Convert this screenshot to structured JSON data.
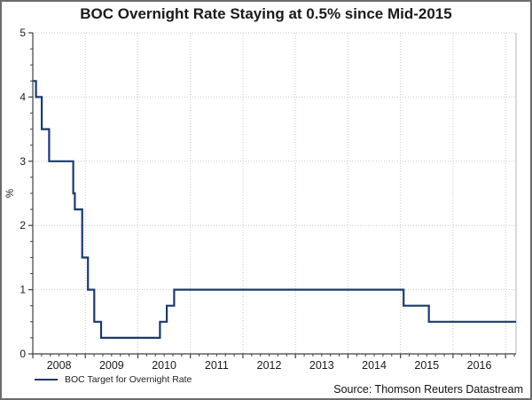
{
  "title": "BOC Overnight Rate Staying at 0.5% since Mid-2015",
  "source": "Source: Thomson Reuters Datastream",
  "colors": {
    "line": "#1b3a6b",
    "grid": "#c9c9c9",
    "axis": "#404040",
    "plot_border": "#b4b4b4",
    "text": "#1a1a1a",
    "outer_border": "#6b6b6b"
  },
  "chart_data": {
    "type": "line",
    "subtype": "step",
    "title": "BOC Overnight Rate Staying at 0.5% since Mid-2015",
    "xlabel": "",
    "ylabel": "%",
    "xlim": [
      2008,
      2017.2
    ],
    "ylim": [
      0,
      5
    ],
    "grid": "dotted",
    "legend_position": "bottom-left",
    "y_major_ticks": [
      0,
      1,
      2,
      3,
      4,
      5
    ],
    "y_tick_labels": [
      "0",
      "1",
      "2",
      "3",
      "4",
      "5"
    ],
    "y_minor_step": 0.25,
    "x_year_gridlines": [
      2009,
      2010,
      2011,
      2012,
      2013,
      2014,
      2015,
      2016,
      2017
    ],
    "x_minor_per_year": 6,
    "x_labels": [
      {
        "text": "2008",
        "x": 2008.5
      },
      {
        "text": "2009",
        "x": 2009.5
      },
      {
        "text": "2010",
        "x": 2010.5
      },
      {
        "text": "2011",
        "x": 2011.5
      },
      {
        "text": "2012",
        "x": 2012.5
      },
      {
        "text": "2013",
        "x": 2013.5
      },
      {
        "text": "2014",
        "x": 2014.5
      },
      {
        "text": "2015",
        "x": 2015.5
      },
      {
        "text": "2016",
        "x": 2016.5
      }
    ],
    "series": [
      {
        "name": "BOC Target for Overnight Rate",
        "color": "#1b3a6b",
        "points": [
          [
            2008.0,
            4.25
          ],
          [
            2008.06,
            4.0
          ],
          [
            2008.17,
            3.5
          ],
          [
            2008.31,
            3.0
          ],
          [
            2008.77,
            2.5
          ],
          [
            2008.8,
            2.25
          ],
          [
            2008.94,
            1.5
          ],
          [
            2009.05,
            1.0
          ],
          [
            2009.17,
            0.5
          ],
          [
            2009.3,
            0.25
          ],
          [
            2010.42,
            0.5
          ],
          [
            2010.55,
            0.75
          ],
          [
            2010.69,
            1.0
          ],
          [
            2015.06,
            0.75
          ],
          [
            2015.54,
            0.5
          ],
          [
            2017.2,
            0.5
          ]
        ]
      }
    ]
  }
}
